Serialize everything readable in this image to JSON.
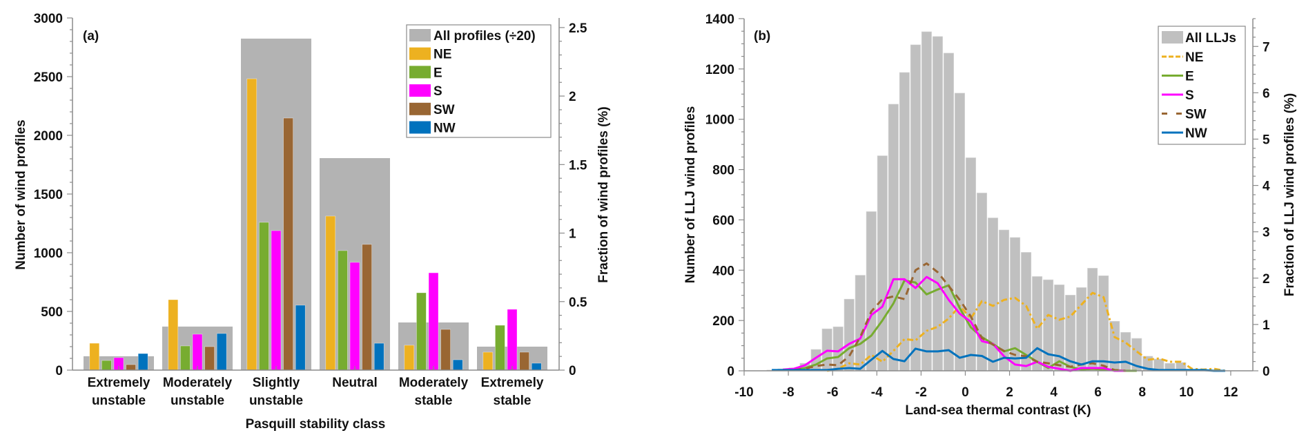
{
  "chart_data": [
    {
      "type": "bar",
      "panel_label": "(a)",
      "xlabel": "Pasquill stability class",
      "ylabel": "Number of wind profiles",
      "ylabel_right": "Fraction of wind profiles (%)",
      "ylim": [
        0,
        3000
      ],
      "ylim_right": [
        0,
        2.57
      ],
      "yticks": [
        0,
        500,
        1000,
        1500,
        2000,
        2500,
        3000
      ],
      "yticks_right": [
        0,
        0.5,
        1,
        1.5,
        2,
        2.5
      ],
      "categories": [
        [
          "Extremely",
          "unstable"
        ],
        [
          "Moderately",
          "unstable"
        ],
        [
          "Slightly",
          "unstable"
        ],
        [
          "Neutral"
        ],
        [
          "Moderately",
          "stable"
        ],
        [
          "Extremely",
          "stable"
        ]
      ],
      "background_series": {
        "name": "All profiles (÷20)",
        "color": "#b3b3b3",
        "values": [
          118,
          371,
          2824,
          1806,
          406,
          200
        ]
      },
      "series": [
        {
          "name": "NE",
          "color": "#edb120",
          "values": [
            229,
            600,
            2482,
            1312,
            212,
            153
          ]
        },
        {
          "name": "E",
          "color": "#77ac30",
          "values": [
            82,
            206,
            1259,
            1018,
            659,
            382
          ]
        },
        {
          "name": "S",
          "color": "#ff00ff",
          "values": [
            106,
            306,
            1188,
            918,
            829,
            518
          ]
        },
        {
          "name": "SW",
          "color": "#996633",
          "values": [
            47,
            200,
            2147,
            1071,
            347,
            153
          ]
        },
        {
          "name": "NW",
          "color": "#0072bd",
          "values": [
            141,
            312,
            553,
            229,
            88,
            59
          ]
        }
      ],
      "legend_position": "top-right",
      "grid": false
    },
    {
      "type": "bar+line",
      "panel_label": "(b)",
      "xlabel": "Land-sea thermal contrast (K)",
      "ylabel": "Number of LLJ wind profiles",
      "ylabel_right": "Fraction of LLJ wind profiles (%)",
      "xlim": [
        -10,
        13
      ],
      "ylim": [
        0,
        1400
      ],
      "ylim_right": [
        0,
        7.6
      ],
      "xticks": [
        -10,
        -8,
        -6,
        -4,
        -2,
        0,
        2,
        4,
        6,
        8,
        10,
        12
      ],
      "yticks": [
        0,
        200,
        400,
        600,
        800,
        1000,
        1200,
        1400
      ],
      "yticks_right": [
        0,
        1,
        2,
        3,
        4,
        5,
        6,
        7
      ],
      "histogram": {
        "name": "All LLJs",
        "color": "#c0c0c0",
        "bin_width": 0.5,
        "bin_starts": [
          -9,
          -8.5,
          -8,
          -7.5,
          -7,
          -6.5,
          -6,
          -5.5,
          -5,
          -4.5,
          -4,
          -3.5,
          -3,
          -2.5,
          -2,
          -1.5,
          -1,
          -0.5,
          0,
          0.5,
          1,
          1.5,
          2,
          2.5,
          3,
          3.5,
          4,
          4.5,
          5,
          5.5,
          6,
          6.5,
          7,
          7.5,
          8,
          8.5,
          9,
          9.5,
          10
        ],
        "values": [
          3,
          8,
          12,
          30,
          85,
          167,
          175,
          285,
          380,
          633,
          855,
          1060,
          1186,
          1296,
          1348,
          1329,
          1263,
          1104,
          847,
          707,
          608,
          560,
          530,
          471,
          375,
          362,
          342,
          301,
          331,
          408,
          378,
          197,
          153,
          129,
          58,
          47,
          30,
          33,
          5
        ]
      },
      "x": [
        -8.75,
        -8.25,
        -7.75,
        -7.25,
        -6.75,
        -6.25,
        -5.75,
        -5.25,
        -4.75,
        -4.25,
        -3.75,
        -3.25,
        -2.75,
        -2.25,
        -1.75,
        -1.25,
        -0.75,
        -0.25,
        0.25,
        0.75,
        1.25,
        1.75,
        2.25,
        2.75,
        3.25,
        3.75,
        4.25,
        4.75,
        5.25,
        5.75,
        6.25,
        6.75,
        7.25,
        7.75,
        8.25,
        8.75,
        9.25,
        9.75,
        10.25,
        10.75,
        11.25,
        11.75
      ],
      "series": [
        {
          "name": "NE",
          "color": "#edb120",
          "style": "dash-dot",
          "values": [
            null,
            null,
            null,
            null,
            null,
            0,
            8,
            30,
            25,
            63,
            36,
            79,
            126,
            121,
            159,
            175,
            208,
            258,
            208,
            277,
            258,
            282,
            290,
            258,
            167,
            222,
            203,
            216,
            263,
            310,
            293,
            134,
            112,
            77,
            44,
            49,
            36,
            36,
            8,
            5,
            8,
            0
          ]
        },
        {
          "name": "E",
          "color": "#77ac30",
          "style": "solid",
          "values": [
            null,
            3,
            3,
            11,
            25,
            49,
            55,
            90,
            107,
            140,
            200,
            268,
            359,
            351,
            304,
            323,
            340,
            249,
            173,
            134,
            107,
            77,
            90,
            63,
            36,
            11,
            38,
            16,
            5,
            8,
            5,
            3,
            0,
            0,
            null,
            null,
            null,
            null,
            null,
            null,
            null,
            null
          ]
        },
        {
          "name": "S",
          "color": "#ff00ff",
          "style": "solid",
          "values": [
            null,
            5,
            8,
            22,
            52,
            80,
            77,
            107,
            128,
            222,
            255,
            364,
            364,
            329,
            373,
            348,
            282,
            227,
            195,
            118,
            107,
            58,
            25,
            19,
            36,
            16,
            8,
            0,
            11,
            11,
            11,
            0,
            0,
            null,
            null,
            null,
            null,
            null,
            null,
            null,
            null,
            null
          ]
        },
        {
          "name": "SW",
          "color": "#996633",
          "style": "dash",
          "values": [
            null,
            3,
            3,
            8,
            19,
            25,
            22,
            58,
            134,
            236,
            285,
            296,
            285,
            400,
            427,
            392,
            337,
            282,
            216,
            130,
            104,
            79,
            63,
            58,
            36,
            30,
            22,
            16,
            25,
            30,
            20,
            3,
            0,
            null,
            null,
            null,
            null,
            null,
            null,
            null,
            null,
            null
          ]
        },
        {
          "name": "NW",
          "color": "#0072bd",
          "style": "solid",
          "values": [
            3,
            3,
            3,
            3,
            3,
            3,
            8,
            11,
            8,
            44,
            79,
            47,
            38,
            88,
            77,
            77,
            82,
            52,
            63,
            59,
            36,
            52,
            49,
            52,
            90,
            66,
            58,
            38,
            25,
            38,
            38,
            33,
            36,
            19,
            8,
            3,
            3,
            3,
            3,
            3,
            0,
            0
          ]
        }
      ],
      "legend_position": "top-right",
      "grid": false
    }
  ]
}
